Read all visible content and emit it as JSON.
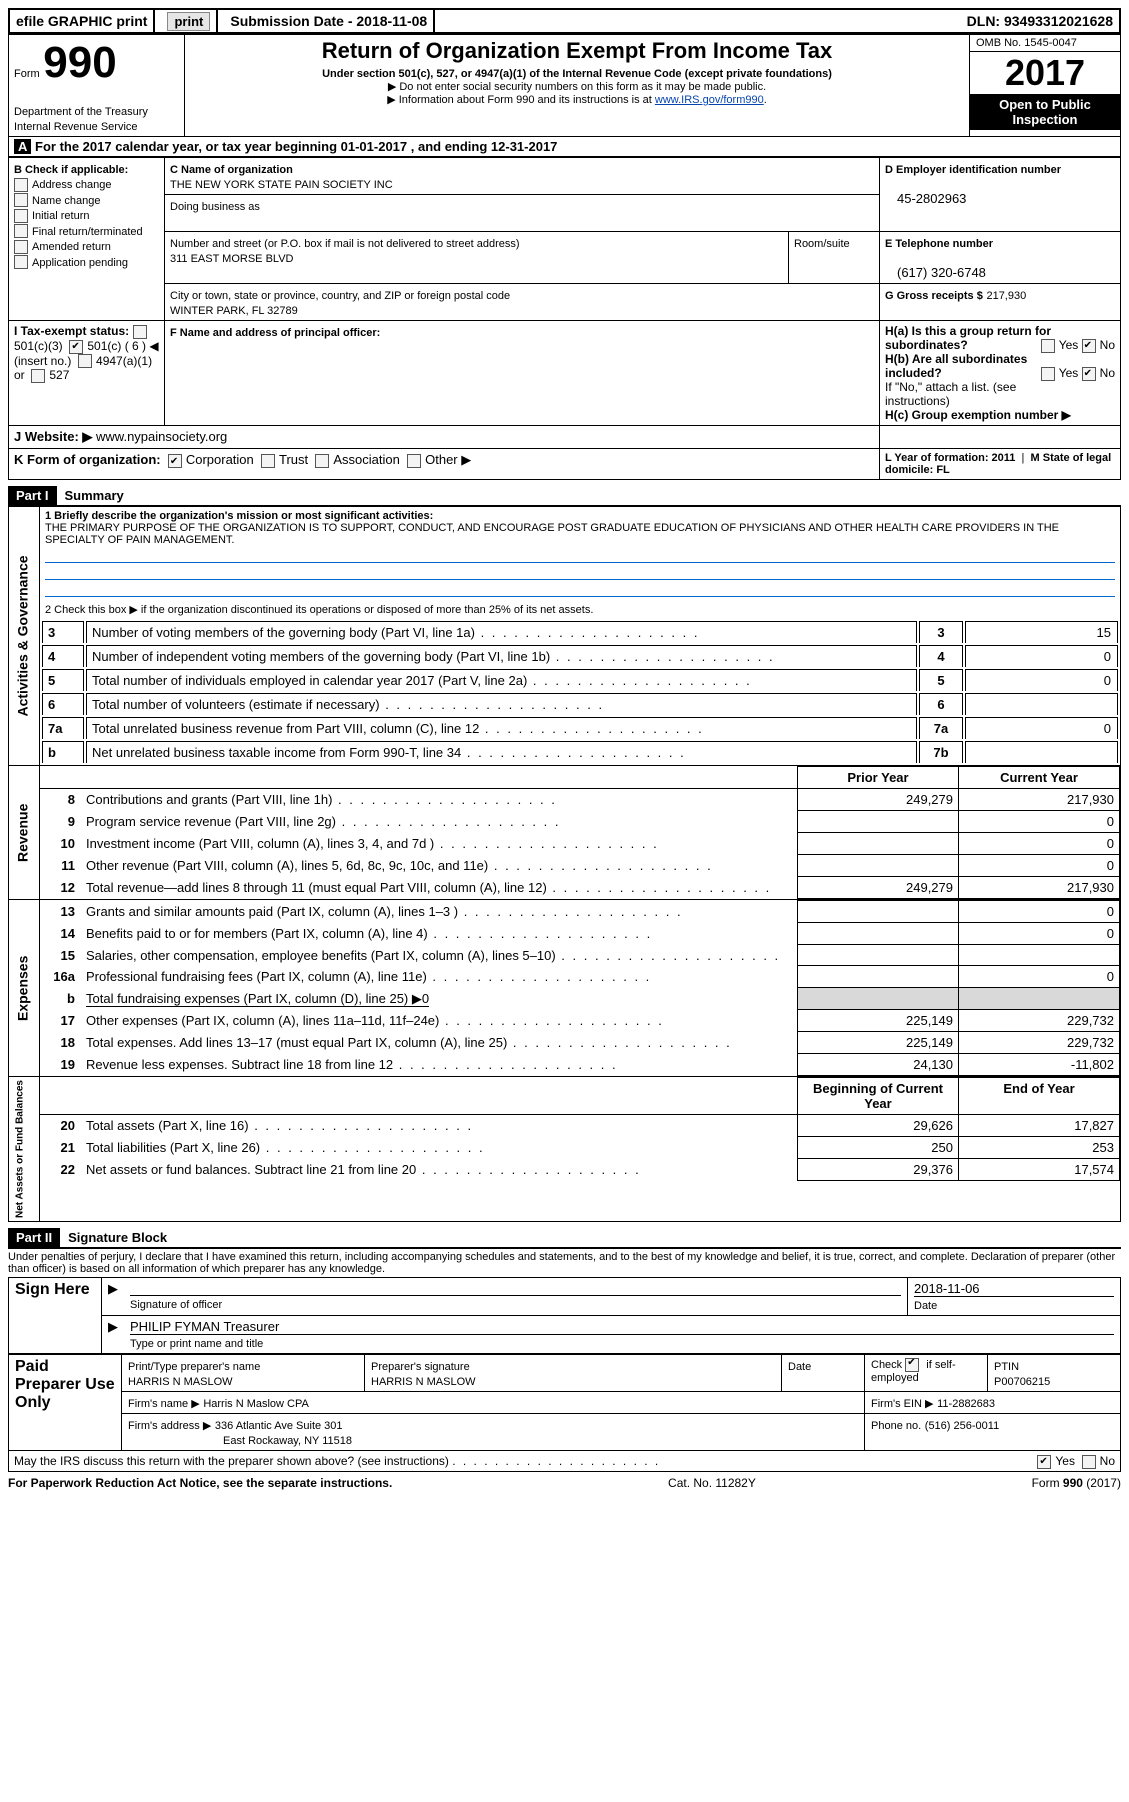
{
  "topbar": {
    "efile": "efile GRAPHIC print",
    "submission_label": "Submission Date - 2018-11-08",
    "dln_label": "DLN: 93493312021628"
  },
  "header": {
    "form_label": "Form",
    "form_number": "990",
    "dept": "Department of the Treasury",
    "irs": "Internal Revenue Service",
    "title": "Return of Organization Exempt From Income Tax",
    "subtitle": "Under section 501(c), 527, or 4947(a)(1) of the Internal Revenue Code (except private foundations)",
    "note1": "▶ Do not enter social security numbers on this form as it may be made public.",
    "note2_pre": "▶ Information about Form 990 and its instructions is at ",
    "note2_link": "www.IRS.gov/form990",
    "omb": "OMB No. 1545-0047",
    "year": "2017",
    "open": "Open to Public Inspection"
  },
  "lineA": "For the 2017 calendar year, or tax year beginning 01-01-2017     , and ending 12-31-2017",
  "boxB": {
    "label": "B Check if applicable:",
    "items": [
      "Address change",
      "Name change",
      "Initial return",
      "Final return/terminated",
      "Amended return",
      "Application pending"
    ]
  },
  "boxC": {
    "name_label": "C Name of organization",
    "org_name": "THE NEW YORK STATE PAIN SOCIETY INC",
    "dba_label": "Doing business as",
    "street_label": "Number and street (or P.O. box if mail is not delivered to street address)",
    "room_label": "Room/suite",
    "street": "311 EAST MORSE BLVD",
    "city_label": "City or town, state or province, country, and ZIP or foreign postal code",
    "city": "WINTER PARK, FL  32789",
    "officer_label": "F  Name and address of principal officer:"
  },
  "boxD": {
    "label": "D Employer identification number",
    "value": "45-2802963"
  },
  "boxE": {
    "label": "E Telephone number",
    "value": "(617) 320-6748"
  },
  "boxG": {
    "label": "G Gross receipts $",
    "value": "217,930"
  },
  "boxH": {
    "a_label": "H(a)  Is this a group return for subordinates?",
    "b_label": "H(b)  Are all subordinates included?",
    "b_note": "If \"No,\" attach a list. (see instructions)",
    "c_label": "H(c)  Group exemption number ▶",
    "yes": "Yes",
    "no": "No"
  },
  "boxI": {
    "label": "I   Tax-exempt status:",
    "opts": [
      "501(c)(3)",
      "501(c) ( 6 ) ◀ (insert no.)",
      "4947(a)(1) or",
      "527"
    ]
  },
  "boxJ": {
    "label": "J   Website: ▶",
    "value": "www.nypainsociety.org"
  },
  "boxK": {
    "label": "K Form of organization:",
    "opts": [
      "Corporation",
      "Trust",
      "Association",
      "Other ▶"
    ]
  },
  "boxLM": {
    "l": "L Year of formation: 2011",
    "m": "M State of legal domicile: FL"
  },
  "part1": {
    "label": "Part I",
    "title": "Summary",
    "l1_label": "1  Briefly describe the organization's mission or most significant activities:",
    "l1_text": "THE PRIMARY PURPOSE OF THE ORGANIZATION IS TO SUPPORT, CONDUCT, AND ENCOURAGE POST GRADUATE EDUCATION OF PHYSICIANS AND OTHER HEALTH CARE PROVIDERS IN THE SPECIALTY OF PAIN MANAGEMENT.",
    "l2": "2   Check this box ▶        if the organization discontinued its operations or disposed of more than 25% of its net assets.",
    "governance_side": "Activities & Governance",
    "revenue_side": "Revenue",
    "expenses_side": "Expenses",
    "net_side": "Net Assets or Fund Balances",
    "gov_rows": [
      {
        "n": "3",
        "t": "Number of voting members of the governing body (Part VI, line 1a)",
        "box": "3",
        "v": "15"
      },
      {
        "n": "4",
        "t": "Number of independent voting members of the governing body (Part VI, line 1b)",
        "box": "4",
        "v": "0"
      },
      {
        "n": "5",
        "t": "Total number of individuals employed in calendar year 2017 (Part V, line 2a)",
        "box": "5",
        "v": "0"
      },
      {
        "n": "6",
        "t": "Total number of volunteers (estimate if necessary)",
        "box": "6",
        "v": ""
      },
      {
        "n": "7a",
        "t": "Total unrelated business revenue from Part VIII, column (C), line 12",
        "box": "7a",
        "v": "0"
      },
      {
        "n": "b",
        "t": "Net unrelated business taxable income from Form 990-T, line 34",
        "box": "7b",
        "v": ""
      }
    ],
    "fin_header": {
      "prior": "Prior Year",
      "current": "Current Year"
    },
    "revenue_rows": [
      {
        "n": "8",
        "t": "Contributions and grants (Part VIII, line 1h)",
        "p": "249,279",
        "c": "217,930"
      },
      {
        "n": "9",
        "t": "Program service revenue (Part VIII, line 2g)",
        "p": "",
        "c": "0"
      },
      {
        "n": "10",
        "t": "Investment income (Part VIII, column (A), lines 3, 4, and 7d )",
        "p": "",
        "c": "0"
      },
      {
        "n": "11",
        "t": "Other revenue (Part VIII, column (A), lines 5, 6d, 8c, 9c, 10c, and 11e)",
        "p": "",
        "c": "0"
      },
      {
        "n": "12",
        "t": "Total revenue—add lines 8 through 11 (must equal Part VIII, column (A), line 12)",
        "p": "249,279",
        "c": "217,930"
      }
    ],
    "expense_rows": [
      {
        "n": "13",
        "t": "Grants and similar amounts paid (Part IX, column (A), lines 1–3 )",
        "p": "",
        "c": "0"
      },
      {
        "n": "14",
        "t": "Benefits paid to or for members (Part IX, column (A), line 4)",
        "p": "",
        "c": "0"
      },
      {
        "n": "15",
        "t": "Salaries, other compensation, employee benefits (Part IX, column (A), lines 5–10)",
        "p": "",
        "c": ""
      },
      {
        "n": "16a",
        "t": "Professional fundraising fees (Part IX, column (A), line 11e)",
        "p": "",
        "c": "0"
      },
      {
        "n": "b",
        "t": "Total fundraising expenses (Part IX, column (D), line 25) ▶0",
        "p": "GRAY",
        "c": "GRAY"
      },
      {
        "n": "17",
        "t": "Other expenses (Part IX, column (A), lines 11a–11d, 11f–24e)",
        "p": "225,149",
        "c": "229,732"
      },
      {
        "n": "18",
        "t": "Total expenses. Add lines 13–17 (must equal Part IX, column (A), line 25)",
        "p": "225,149",
        "c": "229,732"
      },
      {
        "n": "19",
        "t": "Revenue less expenses. Subtract line 18 from line 12",
        "p": "24,130",
        "c": "-11,802"
      }
    ],
    "net_header": {
      "begin": "Beginning of Current Year",
      "end": "End of Year"
    },
    "net_rows": [
      {
        "n": "20",
        "t": "Total assets (Part X, line 16)",
        "p": "29,626",
        "c": "17,827"
      },
      {
        "n": "21",
        "t": "Total liabilities (Part X, line 26)",
        "p": "250",
        "c": "253"
      },
      {
        "n": "22",
        "t": "Net assets or fund balances. Subtract line 21 from line 20",
        "p": "29,376",
        "c": "17,574"
      }
    ]
  },
  "part2": {
    "label": "Part II",
    "title": "Signature Block",
    "penalty": "Under penalties of perjury, I declare that I have examined this return, including accompanying schedules and statements, and to the best of my knowledge and belief, it is true, correct, and complete. Declaration of preparer (other than officer) is based on all information of which preparer has any knowledge.",
    "sign_here": "Sign Here",
    "sig_officer": "Signature of officer",
    "sig_date": "2018-11-06",
    "date_lbl": "Date",
    "officer_name": "PHILIP FYMAN Treasurer",
    "type_name": "Type or print name and title",
    "paid": "Paid Preparer Use Only",
    "prep_name_lbl": "Print/Type preparer's name",
    "prep_name": "HARRIS N MASLOW",
    "prep_sig_lbl": "Preparer's signature",
    "prep_sig": "HARRIS N MASLOW",
    "prep_date_lbl": "Date",
    "check_lbl": "Check         if self-employed",
    "ptin_lbl": "PTIN",
    "ptin": "P00706215",
    "firm_name_lbl": "Firm's name     ▶",
    "firm_name": "Harris N Maslow CPA",
    "firm_ein_lbl": "Firm's EIN ▶",
    "firm_ein": "11-2882683",
    "firm_addr_lbl": "Firm's address ▶",
    "firm_addr1": "336 Atlantic Ave Suite 301",
    "firm_addr2": "East Rockaway, NY  11518",
    "phone_lbl": "Phone no.",
    "phone": "(516) 256-0011",
    "discuss": "May the IRS discuss this return with the preparer shown above? (see instructions)",
    "yes": "Yes",
    "no": "No"
  },
  "footer": {
    "pra": "For Paperwork Reduction Act Notice, see the separate instructions.",
    "cat": "Cat. No. 11282Y",
    "form": "Form 990 (2017)"
  }
}
